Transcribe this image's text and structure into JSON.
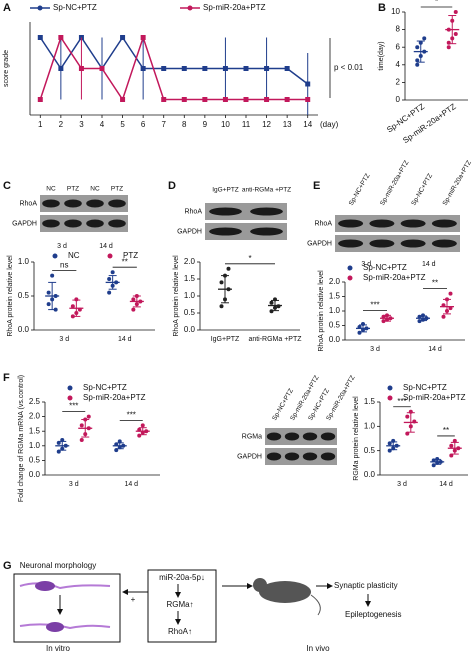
{
  "panels": [
    "A",
    "B",
    "C",
    "D",
    "E",
    "F",
    "G"
  ],
  "chart_data": [
    {
      "type": "line",
      "ylabel": "score grade",
      "x": [
        1,
        2,
        3,
        4,
        5,
        6,
        7,
        8,
        9,
        10,
        11,
        12,
        13,
        14
      ],
      "xlim": [
        0.5,
        14.5
      ],
      "xticks": [
        1,
        2,
        3,
        4,
        5,
        6,
        7,
        8,
        9,
        10,
        11,
        12,
        13,
        14
      ],
      "xlabel": "(day)",
      "ylim": [
        2.5,
        5.5
      ],
      "series": [
        {
          "name": "Sp-NC+PTZ",
          "color": "#1f3d8c",
          "values": [
            5,
            4,
            5,
            4,
            5,
            4,
            4,
            4,
            4,
            4,
            4,
            4,
            4,
            3.5
          ],
          "errors": [
            0,
            1,
            0,
            1,
            0,
            1,
            0,
            0,
            0,
            1,
            0,
            1,
            0,
            1
          ]
        },
        {
          "name": "Sp-miR-20a+PTZ",
          "color": "#c2185b",
          "values": [
            3,
            5,
            4,
            4,
            3,
            5,
            3,
            3,
            3,
            3,
            3,
            3,
            3,
            3
          ],
          "errors": [
            0,
            0,
            1,
            0,
            0,
            0,
            0,
            0,
            0,
            0,
            0,
            0,
            0,
            0
          ]
        }
      ],
      "annotation": "p < 0.01"
    },
    {
      "type": "dot",
      "ylabel": "time(day)",
      "categories": [
        "Sp-NC+PTZ",
        "Sp-miR-20a+PTZ"
      ],
      "colors": [
        "#1f3d8c",
        "#c2185b"
      ],
      "values": [
        5.5,
        8
      ],
      "errors": [
        1.2,
        1.6
      ],
      "points": [
        [
          4,
          5,
          5.5,
          6,
          6.5,
          7,
          4.5
        ],
        [
          6,
          7,
          7.5,
          8,
          9,
          10,
          6.5
        ]
      ],
      "ylim": [
        0,
        10
      ],
      "yticks": [
        0,
        2,
        4,
        6,
        8,
        10
      ],
      "significance": "*"
    },
    {
      "type": "dot",
      "ylabel": "RhoA protein relative level",
      "categories": [
        "3 d",
        "14 d"
      ],
      "series": [
        {
          "name": "NC",
          "color": "#1f3d8c",
          "values": [
            0.5,
            0.7
          ],
          "errors": [
            0.2,
            0.1
          ],
          "points": [
            [
              0.38,
              0.45,
              0.5,
              0.55,
              0.8,
              0.3
            ],
            [
              0.55,
              0.65,
              0.7,
              0.75,
              0.85
            ]
          ]
        },
        {
          "name": "PTZ",
          "color": "#c2185b",
          "values": [
            0.32,
            0.42
          ],
          "errors": [
            0.12,
            0.08
          ],
          "points": [
            [
              0.2,
              0.25,
              0.3,
              0.35,
              0.45
            ],
            [
              0.3,
              0.38,
              0.42,
              0.45,
              0.5
            ]
          ]
        }
      ],
      "ylim": [
        0,
        1
      ],
      "yticks": [
        {
          "value": 0,
          "label": "0.0"
        },
        {
          "value": 0.5,
          "label": "0.5"
        },
        {
          "value": 1,
          "label": "1.0"
        }
      ],
      "significance": [
        "ns",
        "**"
      ]
    },
    {
      "type": "dot",
      "ylabel": "RhoA protein relative level",
      "categories": [
        "IgG+PTZ",
        "anti-RGMa +PTZ"
      ],
      "colors": [
        "#222222",
        "#222222"
      ],
      "values": [
        1.2,
        0.72
      ],
      "errors": [
        0.4,
        0.15
      ],
      "points": [
        [
          0.7,
          0.9,
          1.2,
          1.4,
          1.6,
          1.8
        ],
        [
          0.55,
          0.65,
          0.7,
          0.8,
          0.9
        ]
      ],
      "ylim": [
        0,
        2
      ],
      "yticks": [
        {
          "value": 0,
          "label": "0.0"
        },
        {
          "value": 0.5,
          "label": "0.5"
        },
        {
          "value": 1,
          "label": "1.0"
        },
        {
          "value": 1.5,
          "label": "1.5"
        },
        {
          "value": 2,
          "label": "2.0"
        }
      ],
      "significance": "*"
    },
    {
      "type": "dot",
      "ylabel": "RhoA protein relative level",
      "categories": [
        "3 d",
        "14 d"
      ],
      "series": [
        {
          "name": "Sp-NC+PTZ",
          "color": "#1f3d8c",
          "values": [
            0.4,
            0.75
          ],
          "errors": [
            0.12,
            0.08
          ],
          "points": [
            [
              0.25,
              0.35,
              0.4,
              0.45,
              0.55
            ],
            [
              0.65,
              0.7,
              0.75,
              0.8,
              0.85
            ]
          ]
        },
        {
          "name": "Sp-miR-20a+PTZ",
          "color": "#c2185b",
          "values": [
            0.75,
            1.15
          ],
          "errors": [
            0.1,
            0.25
          ],
          "points": [
            [
              0.65,
              0.7,
              0.75,
              0.8,
              0.85
            ],
            [
              0.8,
              1.0,
              1.1,
              1.2,
              1.4,
              1.6
            ]
          ]
        }
      ],
      "ylim": [
        0,
        2
      ],
      "yticks": [
        {
          "value": 0,
          "label": "0.0"
        },
        {
          "value": 0.5,
          "label": "0.5"
        },
        {
          "value": 1,
          "label": "1.0"
        },
        {
          "value": 1.5,
          "label": "1.5"
        },
        {
          "value": 2,
          "label": "2.0"
        }
      ],
      "significance": [
        "***",
        "**"
      ]
    },
    {
      "type": "dot",
      "ylabel": "Fold change of RGMa mRNA (vs.control)",
      "categories": [
        "3 d",
        "14 d"
      ],
      "series": [
        {
          "name": "Sp-NC+PTZ",
          "color": "#1f3d8c",
          "values": [
            1.0,
            1.0
          ],
          "errors": [
            0.15,
            0.1
          ],
          "points": [
            [
              0.8,
              0.9,
              1.0,
              1.1,
              1.2
            ],
            [
              0.85,
              0.95,
              1.0,
              1.05,
              1.15
            ]
          ]
        },
        {
          "name": "Sp-miR-20a+PTZ",
          "color": "#c2185b",
          "values": [
            1.6,
            1.5
          ],
          "errors": [
            0.3,
            0.12
          ],
          "points": [
            [
              1.2,
              1.4,
              1.6,
              1.7,
              1.9,
              2.0
            ],
            [
              1.35,
              1.45,
              1.5,
              1.55,
              1.7
            ]
          ]
        }
      ],
      "ylim": [
        0,
        2.5
      ],
      "yticks": [
        {
          "value": 0,
          "label": "0.0"
        },
        {
          "value": 0.5,
          "label": "0.5"
        },
        {
          "value": 1,
          "label": "1.0"
        },
        {
          "value": 1.5,
          "label": "1.5"
        },
        {
          "value": 2,
          "label": "2.0"
        },
        {
          "value": 2.5,
          "label": "2.5"
        }
      ],
      "significance": [
        "***",
        "***"
      ]
    },
    {
      "type": "dot",
      "ylabel": "RGMa protein relative level",
      "categories": [
        "3 d",
        "14 d"
      ],
      "series": [
        {
          "name": "Sp-NC+PTZ",
          "color": "#1f3d8c",
          "values": [
            0.6,
            0.27
          ],
          "errors": [
            0.08,
            0.05
          ],
          "points": [
            [
              0.5,
              0.55,
              0.6,
              0.65,
              0.7
            ],
            [
              0.2,
              0.25,
              0.27,
              0.3,
              0.33
            ]
          ]
        },
        {
          "name": "Sp-miR-20a+PTZ",
          "color": "#c2185b",
          "values": [
            1.08,
            0.55
          ],
          "errors": [
            0.2,
            0.12
          ],
          "points": [
            [
              0.85,
              1.0,
              1.1,
              1.2,
              1.3
            ],
            [
              0.4,
              0.5,
              0.55,
              0.6,
              0.7
            ]
          ]
        }
      ],
      "ylim": [
        0,
        1.5
      ],
      "yticks": [
        {
          "value": 0,
          "label": "0.0"
        },
        {
          "value": 0.5,
          "label": "0.5"
        },
        {
          "value": 1,
          "label": "1.0"
        },
        {
          "value": 1.5,
          "label": "1.5"
        }
      ],
      "significance": [
        "***",
        "**"
      ]
    }
  ],
  "blots": [
    {
      "lanes": [
        "NC",
        "PTZ",
        "NC",
        "PTZ"
      ],
      "rows": [
        "RhoA",
        "GAPDH"
      ],
      "times": [
        "3 d",
        "14 d"
      ]
    },
    {
      "lanes": [
        "IgG+PTZ",
        "anti-RGMa +PTZ"
      ],
      "rows": [
        "RhoA",
        "GAPDH"
      ]
    },
    {
      "lanes": [
        "Sp-NC+PTZ",
        "Sp-miR-20a+PTZ",
        "Sp-NC+PTZ",
        "Sp-miR-20a+PTZ"
      ],
      "rows": [
        "RhoA",
        "GAPDH"
      ],
      "times": [
        "3 d",
        "14 d"
      ]
    },
    {
      "lanes": [
        "Sp-NC+PTZ",
        "Sp-miR-20a+PTZ",
        "Sp-NC+PTZ",
        "Sp-miR-20a+PTZ"
      ],
      "rows": [
        "RGMa",
        "GAPDH"
      ]
    }
  ],
  "diagram": {
    "neuron_title": "Neuronal morphology",
    "in_vitro": "In vitro",
    "mir": "miR-20a-5p↓",
    "rgma": "RGMa↑",
    "rhoa": "RhoA↑",
    "plus": "+",
    "synaptic": "Synaptic plasticity",
    "epilepto": "Epileptogenesis",
    "in_vivo": "In vivo"
  }
}
